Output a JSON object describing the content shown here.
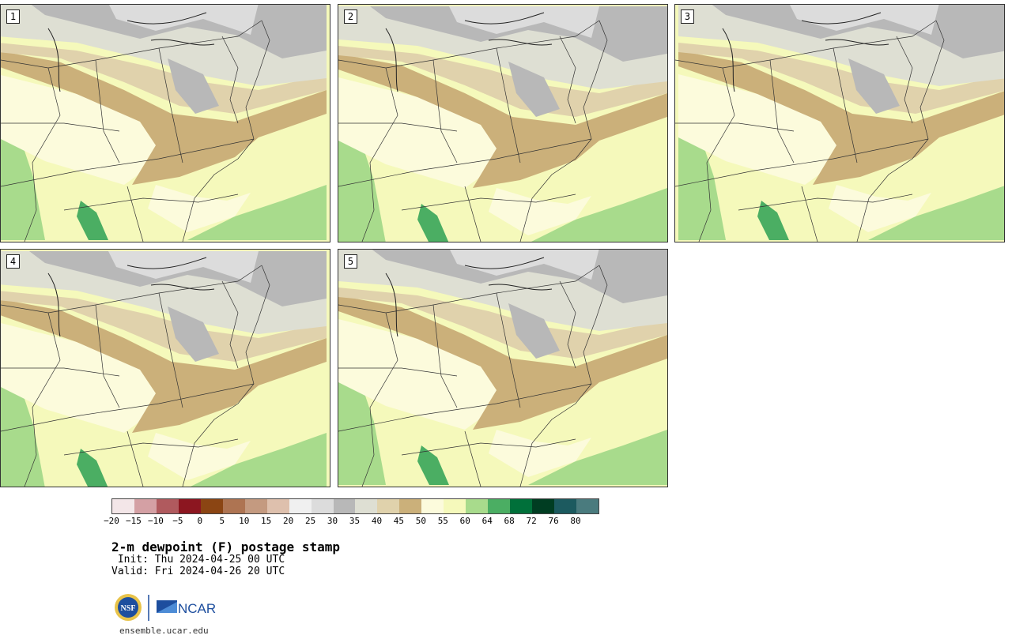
{
  "panels": [
    {
      "label": "1"
    },
    {
      "label": "2"
    },
    {
      "label": "3"
    },
    {
      "label": "4"
    },
    {
      "label": "5"
    }
  ],
  "colorbar": {
    "colors": [
      "#f3e6e8",
      "#d4a0a4",
      "#b05a5e",
      "#8c1620",
      "#8b4513",
      "#ae7452",
      "#c49a80",
      "#dec0ad",
      "#f0f0f0",
      "#dcdcdc",
      "#b8b8b8",
      "#dedfd3",
      "#e0d2ac",
      "#cbb07a",
      "#fcfbdc",
      "#f5f9bb",
      "#a8db8c",
      "#4bae63",
      "#00703a",
      "#003d22",
      "#1c5a5f",
      "#4a7b7e"
    ],
    "ticks": [
      "−20",
      "−15",
      "−10",
      "−5",
      "0",
      "5",
      "10",
      "15",
      "20",
      "25",
      "30",
      "35",
      "40",
      "45",
      "50",
      "55",
      "60",
      "64",
      "68",
      "72",
      "76",
      "80"
    ]
  },
  "title": "2-m dewpoint (F) postage stamp",
  "init": " Init: Thu 2024-04-25 00 UTC",
  "valid": "Valid: Fri 2024-04-26 20 UTC",
  "logos": {
    "nsf": "NSF",
    "ncar": "NCAR"
  },
  "site": "ensemble.ucar.edu"
}
